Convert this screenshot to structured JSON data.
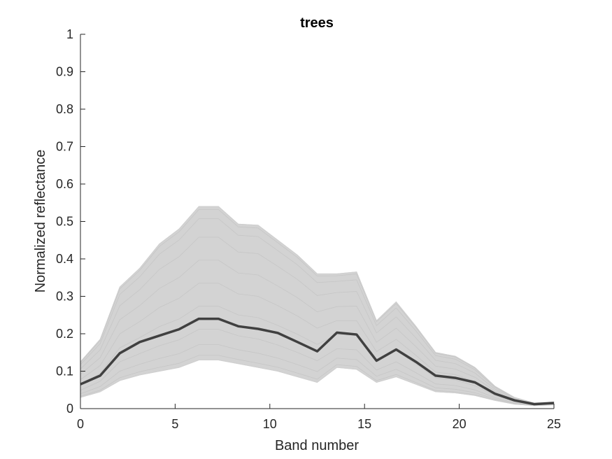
{
  "chart_data": {
    "type": "line",
    "title": "trees",
    "xlabel": "Band number",
    "ylabel": "Normalized reflectance",
    "xlim": [
      0,
      25
    ],
    "ylim": [
      0,
      1
    ],
    "xticks": [
      "0",
      "5",
      "10",
      "15",
      "20",
      "25"
    ],
    "yticks": [
      "0",
      "0.1",
      "0.2",
      "0.3",
      "0.4",
      "0.5",
      "0.6",
      "0.7",
      "0.8",
      "0.9",
      "1"
    ],
    "grid": false,
    "x": [
      0,
      1.04,
      2.08,
      3.13,
      4.17,
      5.21,
      6.25,
      7.29,
      8.33,
      9.38,
      10.42,
      11.46,
      12.5,
      13.54,
      14.58,
      15.63,
      16.67,
      17.71,
      18.75,
      19.79,
      20.83,
      21.88,
      22.92,
      23.96,
      25
    ],
    "series": [
      {
        "role": "mean",
        "color": "#404040",
        "values": [
          0.065,
          0.088,
          0.148,
          0.178,
          0.195,
          0.212,
          0.24,
          0.24,
          0.22,
          0.213,
          0.202,
          0.178,
          0.153,
          0.203,
          0.198,
          0.128,
          0.158,
          0.125,
          0.088,
          0.082,
          0.07,
          0.04,
          0.022,
          0.012,
          0.015
        ]
      },
      {
        "role": "envelope-upper",
        "color": "#d3d3d3",
        "values": [
          0.125,
          0.185,
          0.325,
          0.375,
          0.44,
          0.48,
          0.54,
          0.54,
          0.493,
          0.49,
          0.45,
          0.41,
          0.36,
          0.36,
          0.365,
          0.235,
          0.285,
          0.22,
          0.15,
          0.14,
          0.11,
          0.06,
          0.03,
          0.015,
          0.018
        ]
      },
      {
        "role": "envelope-lower",
        "color": "#d3d3d3",
        "values": [
          0.03,
          0.045,
          0.075,
          0.09,
          0.1,
          0.11,
          0.13,
          0.13,
          0.12,
          0.11,
          0.1,
          0.085,
          0.07,
          0.11,
          0.105,
          0.07,
          0.085,
          0.065,
          0.045,
          0.042,
          0.035,
          0.022,
          0.012,
          0.008,
          0.01
        ]
      }
    ]
  }
}
